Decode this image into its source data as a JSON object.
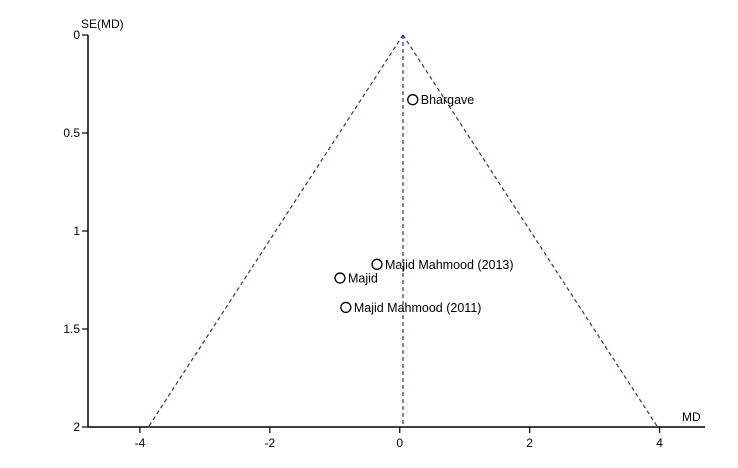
{
  "chart_data": {
    "type": "scatter",
    "title": "",
    "xlabel": "MD",
    "ylabel": "SE(MD)",
    "xlim": [
      -4.8,
      4.7
    ],
    "ylim": [
      0,
      2
    ],
    "y_inverted": true,
    "x_ticks": [
      {
        "value": -4,
        "label": "-4"
      },
      {
        "value": -2,
        "label": "-2"
      },
      {
        "value": 0,
        "label": "0"
      },
      {
        "value": 2,
        "label": "2"
      },
      {
        "value": 4,
        "label": "4"
      }
    ],
    "y_ticks": [
      {
        "value": 0,
        "label": "0"
      },
      {
        "value": 0.5,
        "label": "0.5"
      },
      {
        "value": 1,
        "label": "1"
      },
      {
        "value": 1.5,
        "label": "1.5"
      },
      {
        "value": 2,
        "label": "2"
      }
    ],
    "summary_md": 0.05,
    "funnel_limits": {
      "se_max": 2,
      "left_md": -3.87,
      "right_md": 3.97
    },
    "colors": {
      "funnel": "#2e3192",
      "axis": "#000000",
      "marker": "#000000"
    },
    "points": [
      {
        "label": "Bhargave",
        "md": 0.2,
        "se": 0.33
      },
      {
        "label": "Majid Mahmood (2013)",
        "md": -0.35,
        "se": 1.17
      },
      {
        "label": "Majid",
        "md": -0.92,
        "se": 1.24
      },
      {
        "label": "Majid Mahmood (2011)",
        "md": -0.83,
        "se": 1.39
      }
    ]
  }
}
